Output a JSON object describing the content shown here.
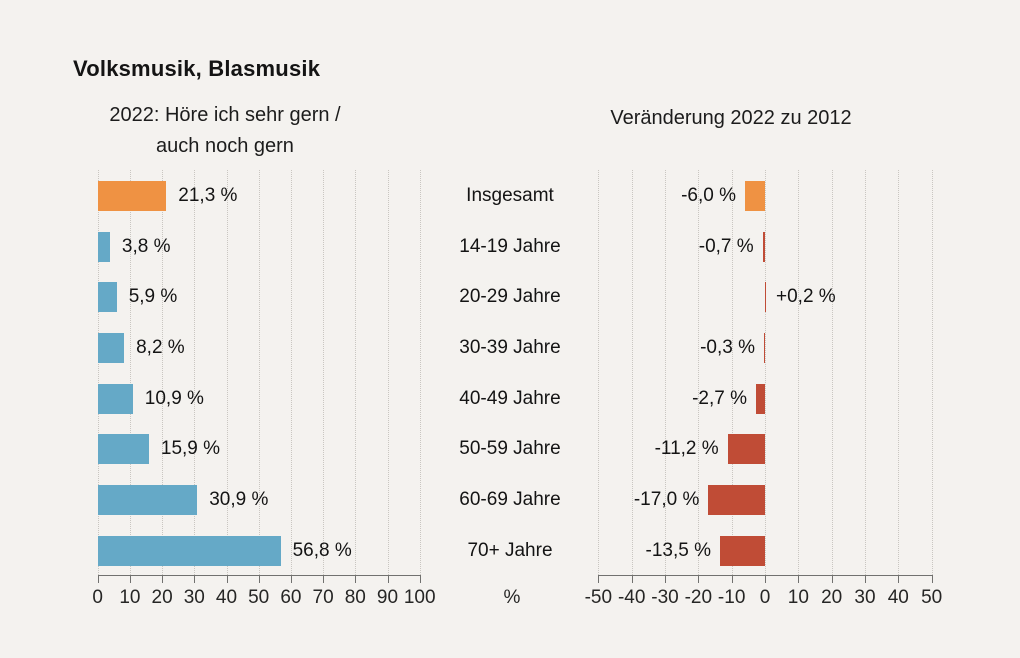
{
  "title": "Volksmusik, Blasmusik",
  "axis_unit_label": "%",
  "categories": [
    "Insgesamt",
    "14-19 Jahre",
    "20-29 Jahre",
    "30-39 Jahre",
    "40-49 Jahre",
    "50-59 Jahre",
    "60-69 Jahre",
    "70+ Jahre"
  ],
  "colors": {
    "background": "#f4f2ef",
    "highlight_orange": "#ef9243",
    "bar_blue": "#65a9c7",
    "bar_red": "#c04c36",
    "grid": "#c9c6c1",
    "axis": "#71716f",
    "text": "#141414"
  },
  "chart_data": [
    {
      "type": "bar",
      "orientation": "horizontal",
      "title": "2022: Höre ich sehr gern /\nauch noch gern",
      "categories": [
        "Insgesamt",
        "14-19 Jahre",
        "20-29 Jahre",
        "30-39 Jahre",
        "40-49 Jahre",
        "50-59 Jahre",
        "60-69 Jahre",
        "70+ Jahre"
      ],
      "values": [
        21.3,
        3.8,
        5.9,
        8.2,
        10.9,
        15.9,
        30.9,
        56.8
      ],
      "value_labels": [
        "21,3 %",
        "3,8 %",
        "5,9 %",
        "8,2 %",
        "10,9 %",
        "15,9 %",
        "30,9 %",
        "56,8 %"
      ],
      "xlim": [
        0,
        100
      ],
      "ticks": [
        0,
        10,
        20,
        30,
        40,
        50,
        60,
        70,
        80,
        90,
        100
      ],
      "unit": "%",
      "grid": "dotted-vertical",
      "legend": "none",
      "bar_color": "#65a9c7",
      "highlight_index": 0,
      "highlight_color": "#ef9243"
    },
    {
      "type": "bar",
      "orientation": "horizontal",
      "title": "Veränderung 2022 zu 2012",
      "categories": [
        "Insgesamt",
        "14-19 Jahre",
        "20-29 Jahre",
        "30-39 Jahre",
        "40-49 Jahre",
        "50-59 Jahre",
        "60-69 Jahre",
        "70+ Jahre"
      ],
      "values": [
        -6.0,
        -0.7,
        0.2,
        -0.3,
        -2.7,
        -11.2,
        -17.0,
        -13.5
      ],
      "value_labels": [
        "-6,0 %",
        "-0,7 %",
        "+0,2 %",
        "-0,3 %",
        "-2,7 %",
        "-11,2 %",
        "-17,0 %",
        "-13,5 %"
      ],
      "xlim": [
        -50,
        50
      ],
      "ticks": [
        -50,
        -40,
        -30,
        -20,
        -10,
        0,
        10,
        20,
        30,
        40,
        50
      ],
      "unit": "%",
      "grid": "dotted-vertical",
      "legend": "none",
      "bar_color": "#c04c36",
      "highlight_index": 0,
      "highlight_color": "#ef9243"
    }
  ]
}
